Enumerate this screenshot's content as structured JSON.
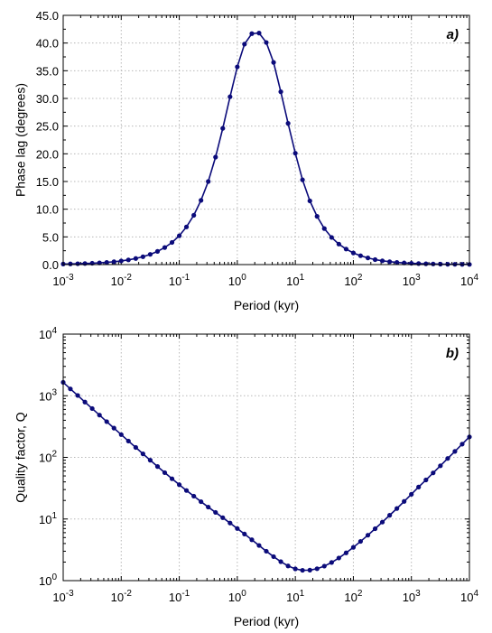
{
  "chart_data": [
    {
      "type": "line",
      "panel_label": "a)",
      "xlabel": "Period (kyr)",
      "ylabel": "Phase lag (degrees)",
      "xscale": "log",
      "xlim": [
        0.001,
        10000
      ],
      "ylim": [
        0,
        45
      ],
      "grid": true,
      "xticks": [
        {
          "base": "10",
          "exp": "-3"
        },
        {
          "base": "10",
          "exp": "-2"
        },
        {
          "base": "10",
          "exp": "-1"
        },
        {
          "base": "10",
          "exp": "0"
        },
        {
          "base": "10",
          "exp": "1"
        },
        {
          "base": "10",
          "exp": "2"
        },
        {
          "base": "10",
          "exp": "3"
        },
        {
          "base": "10",
          "exp": "4"
        }
      ],
      "yticks": [
        "0.0",
        "5.0",
        "10.0",
        "15.0",
        "20.0",
        "25.0",
        "30.0",
        "35.0",
        "40.0",
        "45.0"
      ],
      "series": [
        {
          "color": "#0b0b7a",
          "x": [
            0.001,
            0.00133,
            0.00178,
            0.00237,
            0.00316,
            0.00422,
            0.00562,
            0.0075,
            0.01,
            0.0133,
            0.0178,
            0.0237,
            0.0316,
            0.0422,
            0.0562,
            0.075,
            0.1,
            0.133,
            0.178,
            0.237,
            0.316,
            0.422,
            0.562,
            0.75,
            1,
            1.33,
            1.78,
            2.37,
            3.16,
            4.22,
            5.62,
            7.5,
            10,
            13.3,
            17.8,
            23.7,
            31.6,
            42.2,
            56.2,
            75,
            100,
            133,
            178,
            237,
            316,
            422,
            562,
            750,
            1000,
            1330,
            1780,
            2370,
            3160,
            4220,
            5620,
            7500,
            10000
          ],
          "y": [
            0.1,
            0.12,
            0.15,
            0.19,
            0.24,
            0.31,
            0.4,
            0.51,
            0.66,
            0.85,
            1.1,
            1.42,
            1.84,
            2.38,
            3.08,
            4.0,
            5.2,
            6.8,
            8.9,
            11.6,
            15.0,
            19.4,
            24.6,
            30.3,
            35.7,
            39.8,
            41.7,
            41.8,
            40.1,
            36.5,
            31.2,
            25.5,
            20.1,
            15.3,
            11.5,
            8.7,
            6.5,
            4.9,
            3.7,
            2.8,
            2.1,
            1.6,
            1.2,
            0.9,
            0.68,
            0.52,
            0.4,
            0.3,
            0.23,
            0.18,
            0.14,
            0.11,
            0.08,
            0.06,
            0.05,
            0.04,
            0.03
          ]
        }
      ]
    },
    {
      "type": "line",
      "panel_label": "b)",
      "xlabel": "Period (kyr)",
      "ylabel": "Quality factor, Q",
      "xscale": "log",
      "yscale": "log",
      "xlim": [
        0.001,
        10000
      ],
      "ylim": [
        1,
        10000
      ],
      "grid": true,
      "xticks": [
        {
          "base": "10",
          "exp": "-3"
        },
        {
          "base": "10",
          "exp": "-2"
        },
        {
          "base": "10",
          "exp": "-1"
        },
        {
          "base": "10",
          "exp": "0"
        },
        {
          "base": "10",
          "exp": "1"
        },
        {
          "base": "10",
          "exp": "2"
        },
        {
          "base": "10",
          "exp": "3"
        },
        {
          "base": "10",
          "exp": "4"
        }
      ],
      "yticks": [
        {
          "base": "10",
          "exp": "0"
        },
        {
          "base": "10",
          "exp": "1"
        },
        {
          "base": "10",
          "exp": "2"
        },
        {
          "base": "10",
          "exp": "3"
        },
        {
          "base": "10",
          "exp": "4"
        }
      ],
      "series": [
        {
          "color": "#0b0b7a",
          "x": [
            0.001,
            0.00133,
            0.00178,
            0.00237,
            0.00316,
            0.00422,
            0.00562,
            0.0075,
            0.01,
            0.0133,
            0.0178,
            0.0237,
            0.0316,
            0.0422,
            0.0562,
            0.075,
            0.1,
            0.133,
            0.178,
            0.237,
            0.316,
            0.422,
            0.562,
            0.75,
            1,
            1.33,
            1.78,
            2.37,
            3.16,
            4.22,
            5.62,
            7.5,
            10,
            13.3,
            17.8,
            23.7,
            31.6,
            42.2,
            56.2,
            75,
            100,
            133,
            178,
            237,
            316,
            422,
            562,
            750,
            1000,
            1330,
            1780,
            2370,
            3160,
            4220,
            5620,
            7500,
            10000
          ],
          "y": [
            1650,
            1290,
            1010,
            790,
            620,
            485,
            380,
            298,
            234,
            184,
            145,
            114,
            90,
            71,
            56.5,
            45,
            36,
            29,
            23.5,
            19.1,
            15.6,
            12.8,
            10.5,
            8.6,
            7.0,
            5.7,
            4.6,
            3.72,
            3.0,
            2.45,
            2.03,
            1.73,
            1.55,
            1.47,
            1.48,
            1.56,
            1.72,
            1.97,
            2.33,
            2.82,
            3.47,
            4.33,
            5.46,
            6.95,
            8.9,
            11.5,
            14.8,
            19.3,
            25.2,
            33,
            43,
            56,
            73,
            96,
            125,
            164,
            215
          ]
        }
      ]
    }
  ]
}
